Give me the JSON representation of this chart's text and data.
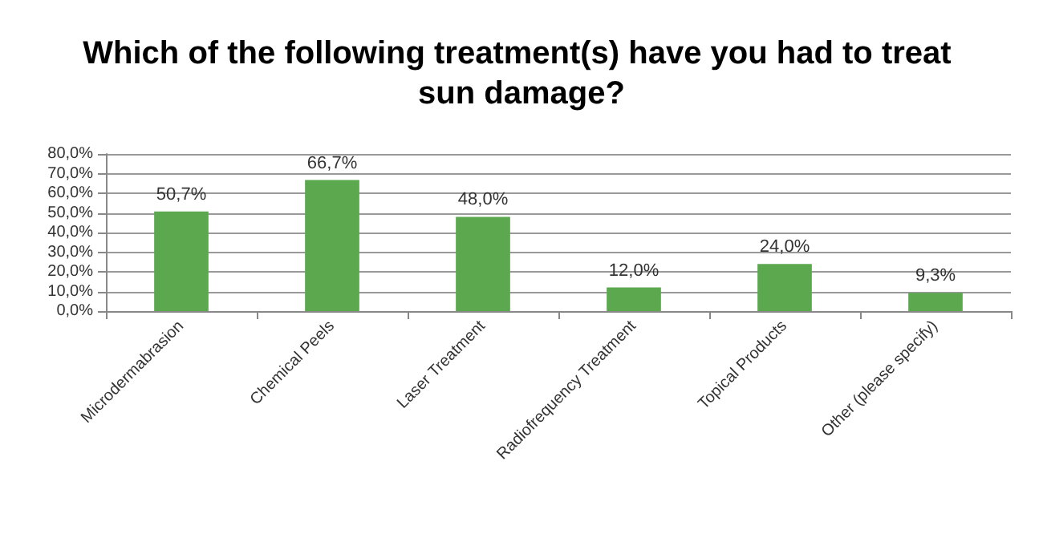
{
  "chart_data": {
    "type": "bar",
    "title": "Which of the following treatment(s) have you had to treat sun damage?",
    "categories": [
      "Microdermabrasion",
      "Chemical Peels",
      "Laser Treatment",
      "Radiofrequency Treatment",
      "Topical Products",
      "Other (please specify)"
    ],
    "values": [
      50.7,
      66.7,
      48.0,
      12.0,
      24.0,
      9.3
    ],
    "value_labels": [
      "50,7%",
      "66,7%",
      "48,0%",
      "12,0%",
      "24,0%",
      "9,3%"
    ],
    "color": "#5ba84f",
    "ylim": [
      0,
      80
    ],
    "yticks": [
      {
        "value": 0,
        "label": "0,0%"
      },
      {
        "value": 10,
        "label": "10,0%"
      },
      {
        "value": 20,
        "label": "20,0%"
      },
      {
        "value": 30,
        "label": "30,0%"
      },
      {
        "value": 40,
        "label": "40,0%"
      },
      {
        "value": 50,
        "label": "50,0%"
      },
      {
        "value": 60,
        "label": "60,0%"
      },
      {
        "value": 70,
        "label": "70,0%"
      },
      {
        "value": 80,
        "label": "80,0%"
      }
    ],
    "grid": "y"
  }
}
